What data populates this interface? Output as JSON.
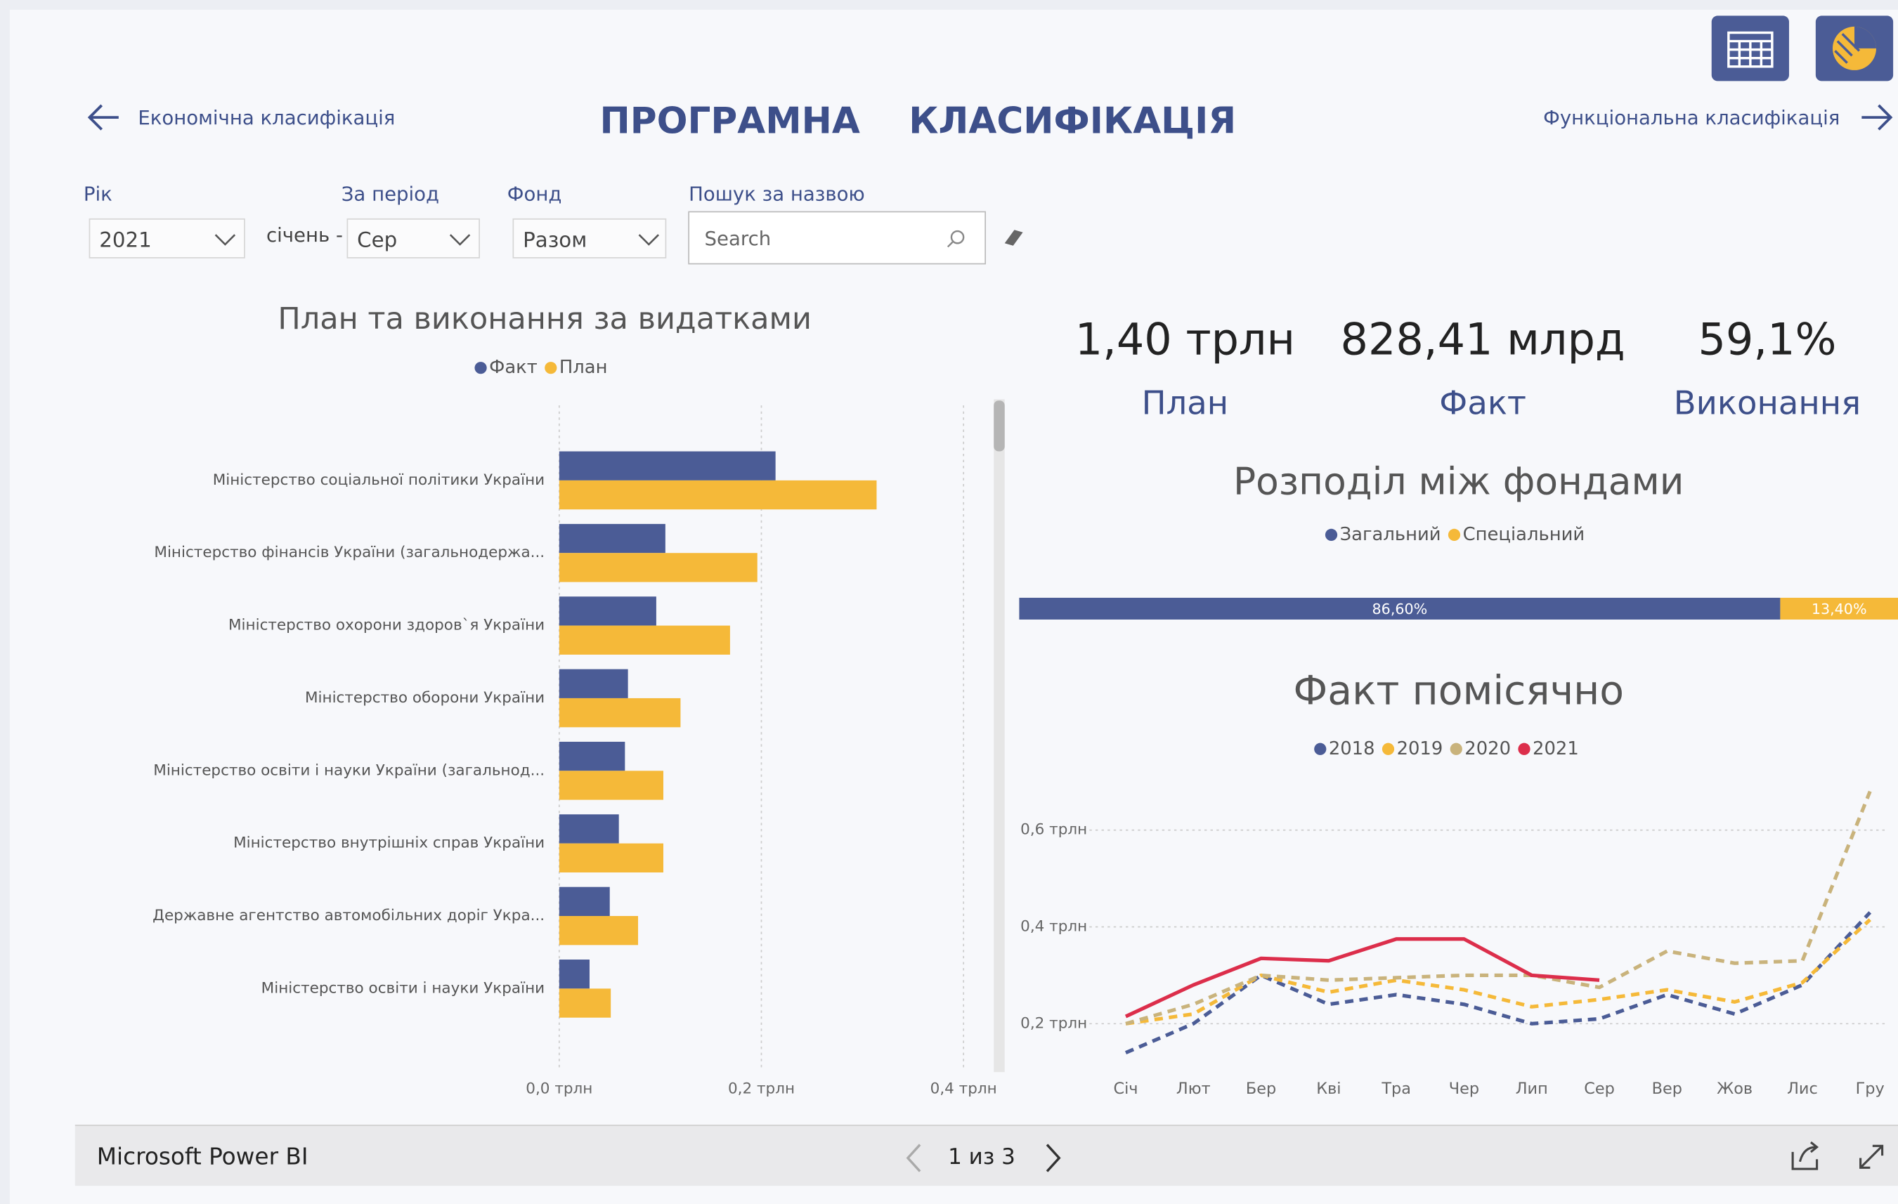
{
  "header": {
    "title_parts": [
      "ПРОГРАМНА",
      "КЛАСИФІКАЦІЯ"
    ],
    "nav_prev": "Економічна класифікація",
    "nav_next": "Функціональна класифікація"
  },
  "filters": {
    "year": {
      "label": "Рік",
      "value": "2021"
    },
    "period_prefix": "січень -",
    "period": {
      "label": "За період",
      "value": "Сер"
    },
    "fund": {
      "label": "Фонд",
      "value": "Разом"
    },
    "search": {
      "label": "Пошук за назвою",
      "placeholder": "Search"
    }
  },
  "kpis": [
    {
      "value": "1,40 трлн",
      "label": "План"
    },
    {
      "value": "828,41 млрд",
      "label": "Факт"
    },
    {
      "value": "59,1%",
      "label": "Виконання"
    }
  ],
  "chart_data": [
    {
      "type": "bar",
      "orientation": "horizontal",
      "title": "План та виконання за видатками",
      "categories": [
        "Міністерство соціальної політики України",
        "Міністерство фінансів України (загальнодержа...",
        "Міністерство охорони здоров`я України",
        "Міністерство оборони України",
        "Міністерство освіти і науки України (загальнод...",
        "Міністерство внутрішніх справ України",
        "Державне агентство автомобільних доріг Укра...",
        "Міністерство освіти і науки України"
      ],
      "series": [
        {
          "name": "Факт",
          "color": "#4b5c96",
          "values": [
            0.214,
            0.105,
            0.096,
            0.068,
            0.065,
            0.059,
            0.05,
            0.03
          ]
        },
        {
          "name": "План",
          "color": "#f5b939",
          "values": [
            0.314,
            0.196,
            0.169,
            0.12,
            0.103,
            0.103,
            0.078,
            0.051
          ]
        }
      ],
      "xlim": [
        0,
        0.4
      ],
      "xticks": [
        {
          "value": 0,
          "label": "0,0 трлн"
        },
        {
          "value": 0.2,
          "label": "0,2 трлн"
        },
        {
          "value": 0.4,
          "label": "0,4 трлн"
        }
      ],
      "grid": true
    },
    {
      "type": "stacked_bar",
      "orientation": "horizontal",
      "title": "Розподіл між фондами",
      "categories": [
        null
      ],
      "series": [
        {
          "name": "Загальний",
          "color": "#4b5c96",
          "values": [
            86.6
          ],
          "value_labels": [
            "86,60%"
          ]
        },
        {
          "name": "Спеціальний",
          "color": "#f5b939",
          "values": [
            13.4
          ],
          "value_labels": [
            "13,40%"
          ]
        }
      ],
      "xlim": [
        0,
        100
      ]
    },
    {
      "type": "line",
      "title": "Факт помісячно",
      "categories": [
        "Січ",
        "Лют",
        "Бер",
        "Кві",
        "Тра",
        "Чер",
        "Лип",
        "Сер",
        "Вер",
        "Жов",
        "Лис",
        "Гру"
      ],
      "series": [
        {
          "name": "2018",
          "color": "#4b5c96",
          "dashed": true,
          "values": [
            0.14,
            0.2,
            0.3,
            0.24,
            0.26,
            0.24,
            0.2,
            0.21,
            0.26,
            0.22,
            0.28,
            0.43
          ]
        },
        {
          "name": "2019",
          "color": "#f5b939",
          "dashed": true,
          "values": [
            0.2,
            0.22,
            0.3,
            0.265,
            0.29,
            0.27,
            0.235,
            0.25,
            0.27,
            0.245,
            0.285,
            0.415
          ]
        },
        {
          "name": "2020",
          "color": "#c9b37c",
          "dashed": true,
          "values": [
            0.2,
            0.24,
            0.3,
            0.29,
            0.295,
            0.3,
            0.3,
            0.275,
            0.35,
            0.325,
            0.33,
            0.68
          ]
        },
        {
          "name": "2021",
          "color": "#dc2e4b",
          "dashed": false,
          "values": [
            0.215,
            0.28,
            0.335,
            0.33,
            0.375,
            0.375,
            0.3,
            0.29,
            null,
            null,
            null,
            null
          ]
        }
      ],
      "ylim": [
        0.1,
        0.7
      ],
      "yticks": [
        {
          "value": 0.2,
          "label": "0,2 трлн"
        },
        {
          "value": 0.4,
          "label": "0,4 трлн"
        },
        {
          "value": 0.6,
          "label": "0,6 трлн"
        }
      ],
      "grid": true
    }
  ],
  "footer": {
    "app": "Microsoft Power BI",
    "page": "1 из 3"
  }
}
